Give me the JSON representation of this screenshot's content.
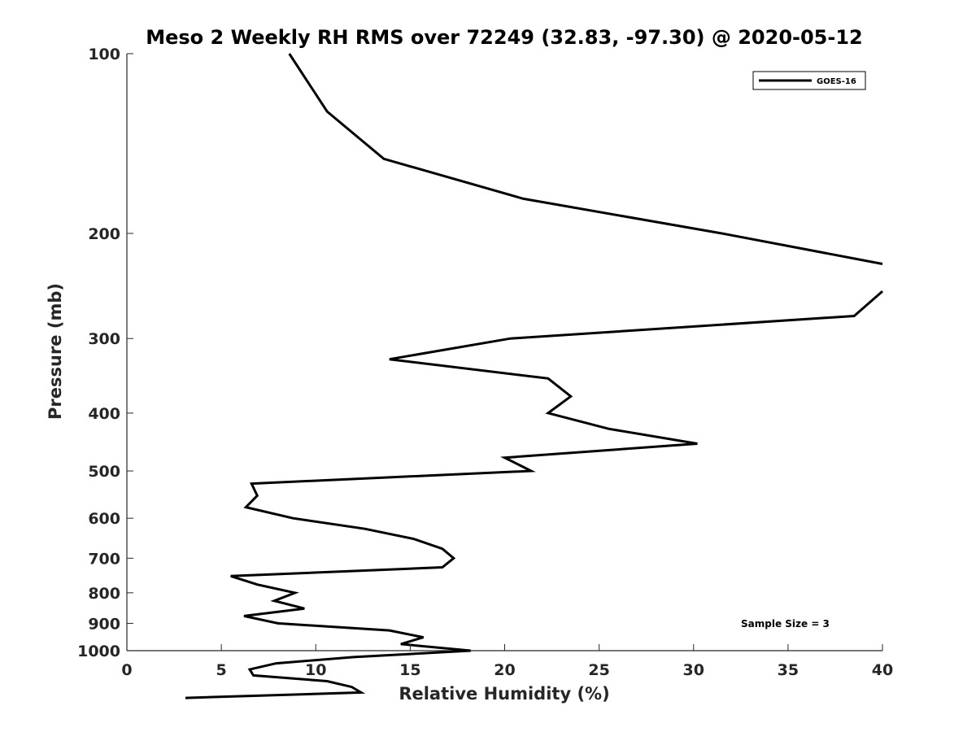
{
  "chart_data": {
    "type": "line",
    "title": "Meso 2 Weekly RH RMS over 72249 (32.83, -97.30) @ 2020-05-12",
    "xlabel": "Relative Humidity (%)",
    "ylabel": "Pressure (mb)",
    "xlim": [
      0,
      40
    ],
    "ylim": [
      100,
      1000
    ],
    "y_scale": "log",
    "y_reversed": true,
    "grid": false,
    "legend_position": "top-right",
    "xticks": [
      0,
      5,
      10,
      15,
      20,
      25,
      30,
      35,
      40
    ],
    "yticks": [
      100,
      200,
      300,
      400,
      500,
      600,
      700,
      800,
      900,
      1000
    ],
    "annotation": "Sample Size = 3",
    "series": [
      {
        "name": "GOES-16",
        "color": "#000000",
        "segments": [
          [
            {
              "x": 8.6,
              "y": 100
            },
            {
              "x": 10.6,
              "y": 125
            },
            {
              "x": 13.6,
              "y": 150
            },
            {
              "x": 21.0,
              "y": 175
            },
            {
              "x": 31.5,
              "y": 200
            },
            {
              "x": 40.0,
              "y": 225
            }
          ],
          [
            {
              "x": 40.0,
              "y": 250
            },
            {
              "x": 38.5,
              "y": 275
            },
            {
              "x": 20.3,
              "y": 300
            },
            {
              "x": 13.9,
              "y": 325
            },
            {
              "x": 22.3,
              "y": 350
            },
            {
              "x": 23.5,
              "y": 375
            },
            {
              "x": 22.3,
              "y": 400
            },
            {
              "x": 25.5,
              "y": 425
            },
            {
              "x": 30.2,
              "y": 450
            },
            {
              "x": 20.0,
              "y": 475
            },
            {
              "x": 21.4,
              "y": 500
            },
            {
              "x": 6.6,
              "y": 525
            },
            {
              "x": 6.9,
              "y": 550
            },
            {
              "x": 6.3,
              "y": 575
            },
            {
              "x": 8.8,
              "y": 600
            },
            {
              "x": 12.6,
              "y": 625
            },
            {
              "x": 15.2,
              "y": 650
            },
            {
              "x": 16.7,
              "y": 675
            },
            {
              "x": 17.3,
              "y": 700
            },
            {
              "x": 16.7,
              "y": 725
            },
            {
              "x": 5.5,
              "y": 750
            },
            {
              "x": 6.9,
              "y": 775
            },
            {
              "x": 8.9,
              "y": 800
            },
            {
              "x": 7.8,
              "y": 825
            },
            {
              "x": 9.4,
              "y": 850
            },
            {
              "x": 6.2,
              "y": 875
            },
            {
              "x": 8.0,
              "y": 900
            },
            {
              "x": 13.9,
              "y": 925
            },
            {
              "x": 15.7,
              "y": 950
            },
            {
              "x": 14.5,
              "y": 975
            },
            {
              "x": 18.2,
              "y": 1000
            },
            {
              "x": 12.0,
              "y": 1025
            },
            {
              "x": 7.9,
              "y": 1050
            },
            {
              "x": 6.5,
              "y": 1075
            },
            {
              "x": 6.7,
              "y": 1100
            },
            {
              "x": 10.6,
              "y": 1125
            },
            {
              "x": 11.9,
              "y": 1150
            },
            {
              "x": 12.4,
              "y": 1175
            },
            {
              "x": 3.1,
              "y": 1200
            }
          ]
        ]
      }
    ]
  }
}
